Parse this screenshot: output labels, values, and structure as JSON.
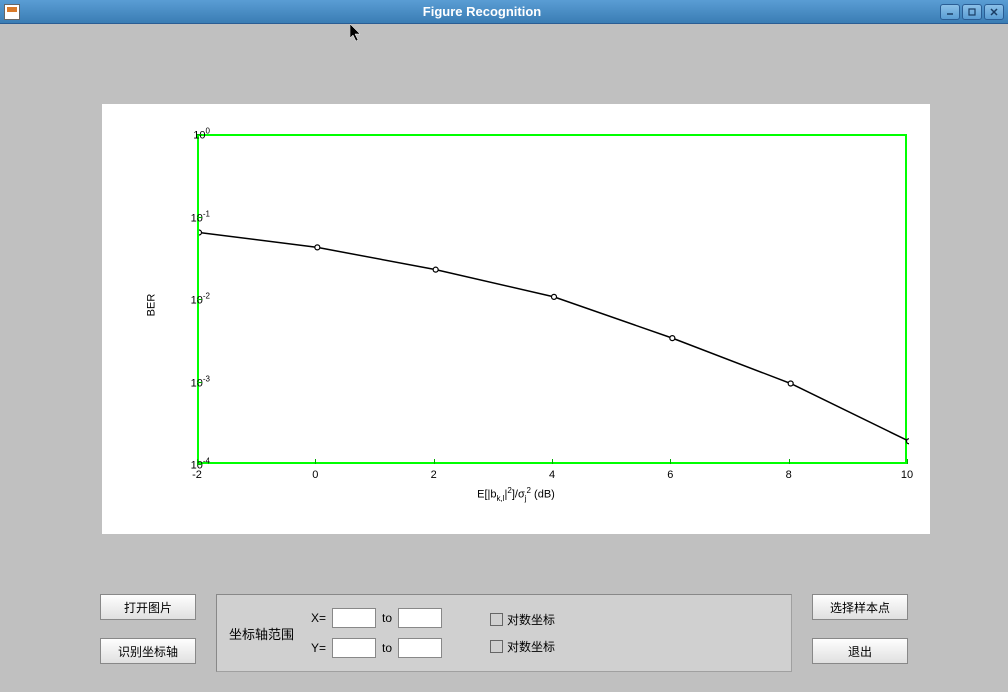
{
  "window": {
    "title": "Figure Recognition"
  },
  "chart": {
    "type": "line",
    "xlabel": "E[|b_{k,l}|²]/σ_j² (dB)",
    "ylabel": "BER",
    "xlim": [
      -2,
      10
    ],
    "ylim_log": [
      -4,
      0
    ],
    "xticks": [
      -2,
      0,
      2,
      4,
      6,
      8,
      10
    ],
    "yticks_exp": [
      0,
      -1,
      -2,
      -3,
      -4
    ],
    "yticks_labels": [
      "10⁰",
      "10⁻¹",
      "10⁻²",
      "10⁻³",
      "10⁻⁴"
    ],
    "border_color": "#00ff00",
    "line_color": "#000000",
    "marker_edge_color": "#000000",
    "marker_fill_color": "#ffffff",
    "marker_size": 5,
    "line_width": 1.5,
    "background_color": "#ffffff",
    "panel_background": "#ffffff",
    "series": {
      "x": [
        -2,
        0,
        2,
        4,
        6,
        8,
        10
      ],
      "y_log10": [
        -1.17,
        -1.35,
        -1.62,
        -1.95,
        -2.45,
        -3.0,
        -3.7
      ]
    }
  },
  "buttons": {
    "open_image": "打开图片",
    "recognize_axis": "识别坐标轴",
    "select_samples": "选择样本点",
    "exit": "退出"
  },
  "axis_panel": {
    "title": "坐标轴范围",
    "x_label": "X=",
    "y_label": "Y=",
    "to_label": "to",
    "log_checkbox_label": "对数坐标",
    "x_from": "",
    "x_to": "",
    "y_from": "",
    "y_to": ""
  },
  "colors": {
    "titlebar_gradient_top": "#5a9dd4",
    "titlebar_gradient_bottom": "#3a7db4",
    "window_bg": "#c0c0c0",
    "panel_bg": "#d0d0d0"
  }
}
